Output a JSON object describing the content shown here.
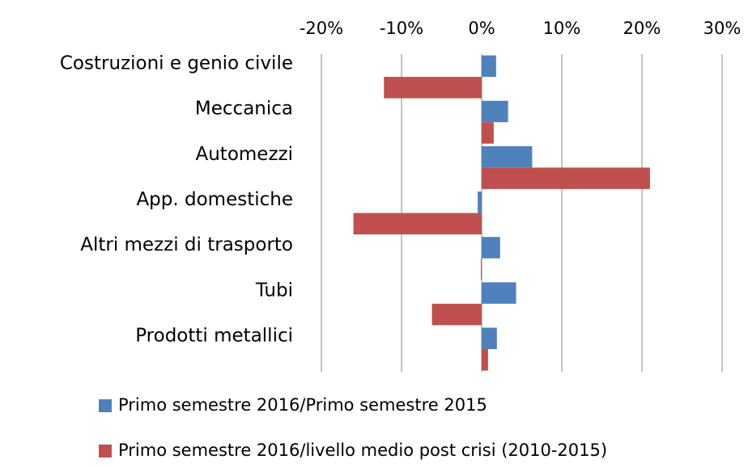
{
  "chart_data": {
    "type": "bar",
    "orientation": "horizontal",
    "categories": [
      "Costruzioni e genio civile",
      "Meccanica",
      "Automezzi",
      "App. domestiche",
      "Altri mezzi di trasporto",
      "Tubi",
      "Prodotti metallici"
    ],
    "series": [
      {
        "name": "Primo semestre 2016/Primo semestre 2015",
        "color": "#4f81bd",
        "values": [
          1.8,
          3.3,
          6.3,
          -0.5,
          2.3,
          4.3,
          1.9
        ]
      },
      {
        "name": "Primo semestre 2016/livello medio post crisi (2010-2015)",
        "color": "#c0504d",
        "values": [
          -12.2,
          1.5,
          21.0,
          -16.0,
          -0.1,
          -6.2,
          0.8
        ]
      }
    ],
    "xlim": [
      -20,
      30
    ],
    "xticks": [
      {
        "value": -20,
        "label": "-20%"
      },
      {
        "value": -10,
        "label": "-10%"
      },
      {
        "value": 0,
        "label": "0%"
      },
      {
        "value": 10,
        "label": "10%"
      },
      {
        "value": 20,
        "label": "20%"
      },
      {
        "value": 30,
        "label": "30%"
      }
    ],
    "grid": true
  }
}
